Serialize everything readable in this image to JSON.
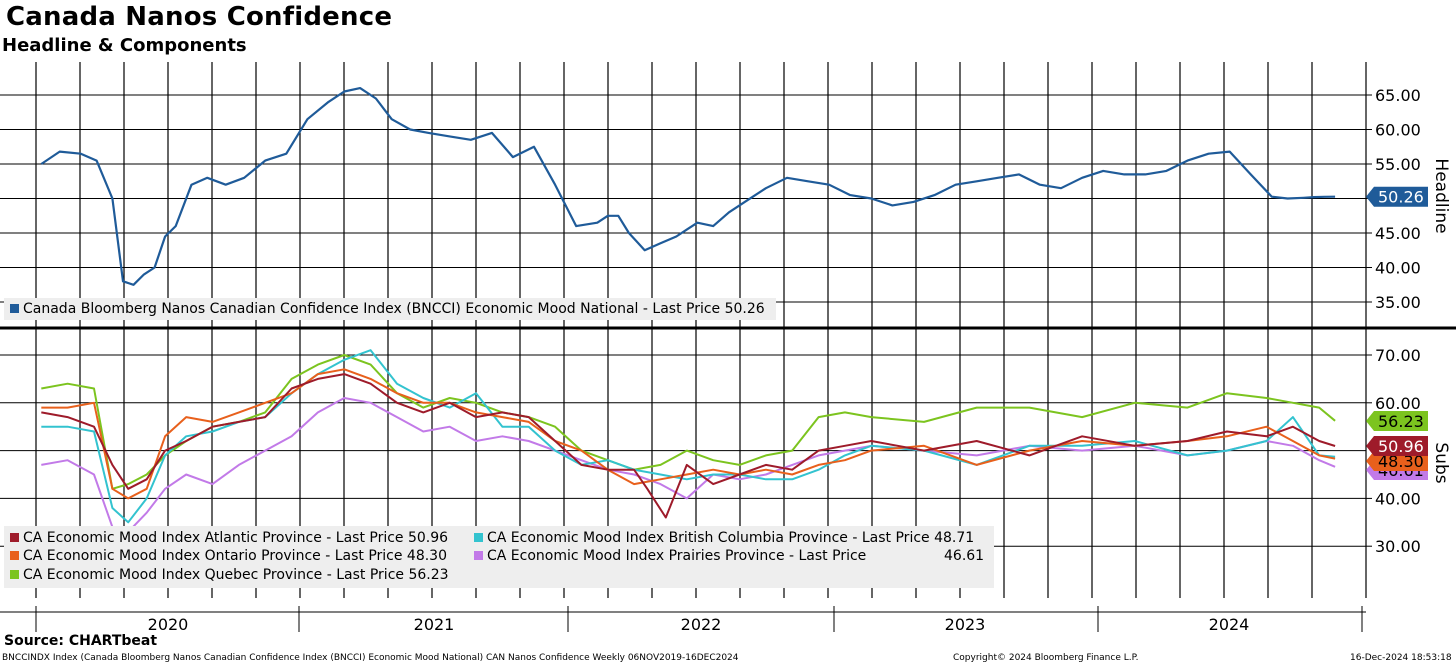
{
  "title": "Canada Nanos Confidence",
  "subtitle": "Headline & Components",
  "source": "Source: CHARTbeat",
  "footer": {
    "description": "BNCCINDX Index (Canada Bloomberg Nanos Canadian Confidence Index (BNCCI) Economic Mood National) CAN Nanos Confidence  Weekly 06NOV2019-16DEC2024",
    "copyright": "Copyright© 2024 Bloomberg Finance L.P.",
    "timestamp": "16-Dec-2024 18:53:18"
  },
  "colors": {
    "national": "#1f5b99",
    "atlantic": "#9e1b2a",
    "ontario": "#e8601c",
    "quebec": "#7cc41f",
    "british_columbia": "#33c3cf",
    "prairies": "#c27ae8"
  },
  "chart_data": [
    {
      "type": "line",
      "panel": "top",
      "axis_title": "Headline",
      "ylim": [
        31,
        70
      ],
      "yticks": [
        "65.00",
        "60.00",
        "55.00",
        "50.00",
        "45.00",
        "40.00",
        "35.00"
      ],
      "xlabels": [
        "2020",
        "2021",
        "2022",
        "2023",
        "2024"
      ],
      "series": [
        {
          "name": "Canada Bloomberg Nanos Canadian Confidence Index (BNCCI) Economic Mood National",
          "legend": "Canada Bloomberg Nanos Canadian Confidence Index (BNCCI) Economic Mood National - Last Price 50.26",
          "last_label": "50.26",
          "x": [
            2019.85,
            2019.92,
            2020.0,
            2020.06,
            2020.12,
            2020.16,
            2020.2,
            2020.24,
            2020.28,
            2020.32,
            2020.36,
            2020.42,
            2020.48,
            2020.55,
            2020.62,
            2020.7,
            2020.78,
            2020.86,
            2020.94,
            2021.0,
            2021.06,
            2021.12,
            2021.18,
            2021.25,
            2021.32,
            2021.4,
            2021.48,
            2021.56,
            2021.64,
            2021.72,
            2021.8,
            2021.88,
            2021.96,
            2022.0,
            2022.04,
            2022.08,
            2022.14,
            2022.2,
            2022.26,
            2022.3,
            2022.34,
            2022.4,
            2022.46,
            2022.52,
            2022.6,
            2022.68,
            2022.76,
            2022.84,
            2022.92,
            2023.0,
            2023.08,
            2023.16,
            2023.24,
            2023.32,
            2023.4,
            2023.48,
            2023.56,
            2023.64,
            2023.72,
            2023.8,
            2023.88,
            2023.96,
            2024.04,
            2024.12,
            2024.2,
            2024.28,
            2024.36,
            2024.44,
            2024.52,
            2024.58,
            2024.64,
            2024.68,
            2024.72,
            2024.76
          ],
          "values": [
            55.0,
            56.8,
            56.5,
            55.5,
            50.0,
            38.0,
            37.5,
            39.0,
            40.0,
            44.5,
            46.0,
            52.0,
            53.0,
            52.0,
            53.0,
            55.5,
            56.5,
            61.5,
            64.0,
            65.5,
            66.0,
            64.5,
            61.5,
            60.0,
            59.5,
            59.0,
            58.5,
            59.5,
            56.0,
            57.5,
            52.0,
            46.0,
            46.5,
            47.5,
            47.5,
            45.0,
            42.5,
            43.5,
            44.5,
            45.5,
            46.5,
            46.0,
            48.0,
            49.5,
            51.5,
            53.0,
            52.5,
            52.0,
            50.5,
            50.0,
            49.0,
            49.5,
            50.5,
            52.0,
            52.5,
            53.0,
            53.5,
            52.0,
            51.5,
            53.0,
            54.0,
            53.5,
            53.5,
            54.0,
            55.5,
            56.5,
            56.8,
            53.5,
            50.26,
            50.0,
            50.1,
            50.2,
            50.25,
            50.26
          ]
        }
      ]
    },
    {
      "type": "line",
      "panel": "bottom",
      "axis_title": "Subs",
      "ylim": [
        25,
        73
      ],
      "yticks": [
        "70.00",
        "60.00",
        "40.00",
        "30.00"
      ],
      "series": [
        {
          "name": "CA Economic Mood Index Atlantic Province",
          "legend": "CA Economic Mood Index Atlantic Province - Last Price 50.96",
          "last_label": "50.96",
          "color_key": "atlantic",
          "x": [
            2019.85,
            2019.95,
            2020.05,
            2020.12,
            2020.18,
            2020.25,
            2020.32,
            2020.4,
            2020.5,
            2020.6,
            2020.7,
            2020.8,
            2020.9,
            2021.0,
            2021.1,
            2021.2,
            2021.3,
            2021.4,
            2021.5,
            2021.6,
            2021.7,
            2021.8,
            2021.9,
            2022.0,
            2022.1,
            2022.15,
            2022.22,
            2022.3,
            2022.4,
            2022.5,
            2022.6,
            2022.7,
            2022.8,
            2022.9,
            2023.0,
            2023.2,
            2023.4,
            2023.6,
            2023.8,
            2024.0,
            2024.2,
            2024.35,
            2024.5,
            2024.6,
            2024.7,
            2024.76
          ],
          "values": [
            58,
            57,
            55,
            47,
            42,
            44,
            50,
            52,
            55,
            56,
            57,
            63,
            65,
            66,
            64,
            60,
            58,
            60,
            57,
            58,
            57,
            52,
            47,
            46,
            46,
            42,
            36,
            47,
            43,
            45,
            47,
            46,
            50,
            51,
            52,
            50,
            52,
            49,
            53,
            51,
            52,
            54,
            53,
            55,
            52,
            50.96
          ]
        },
        {
          "name": "CA Economic Mood Index Ontario Province",
          "legend": "CA Economic Mood Index Ontario Province - Last Price 48.30",
          "last_label": "48.30",
          "color_key": "ontario",
          "x": [
            2019.85,
            2019.95,
            2020.05,
            2020.12,
            2020.18,
            2020.25,
            2020.32,
            2020.4,
            2020.5,
            2020.6,
            2020.7,
            2020.8,
            2020.9,
            2021.0,
            2021.1,
            2021.2,
            2021.3,
            2021.4,
            2021.5,
            2021.6,
            2021.7,
            2021.8,
            2021.9,
            2022.0,
            2022.1,
            2022.2,
            2022.3,
            2022.4,
            2022.5,
            2022.6,
            2022.7,
            2022.8,
            2022.9,
            2023.0,
            2023.2,
            2023.4,
            2023.6,
            2023.8,
            2024.0,
            2024.2,
            2024.35,
            2024.5,
            2024.6,
            2024.7,
            2024.76
          ],
          "values": [
            59,
            59,
            60,
            42,
            40,
            42,
            53,
            57,
            56,
            58,
            60,
            62,
            66,
            67,
            65,
            62,
            60,
            60,
            58,
            57,
            56,
            52,
            50,
            46,
            43,
            44,
            45,
            46,
            45,
            46,
            45,
            47,
            48,
            50,
            51,
            47,
            50,
            52,
            51,
            52,
            53,
            55,
            52,
            49,
            48.3
          ]
        },
        {
          "name": "CA Economic Mood Index Quebec Province",
          "legend": "CA Economic Mood Index Quebec Province - Last Price 56.23",
          "last_label": "56.23",
          "color_key": "quebec",
          "x": [
            2019.85,
            2019.95,
            2020.05,
            2020.12,
            2020.18,
            2020.25,
            2020.32,
            2020.4,
            2020.5,
            2020.6,
            2020.7,
            2020.8,
            2020.9,
            2021.0,
            2021.1,
            2021.2,
            2021.3,
            2021.4,
            2021.5,
            2021.6,
            2021.7,
            2021.8,
            2021.9,
            2022.0,
            2022.1,
            2022.2,
            2022.3,
            2022.4,
            2022.5,
            2022.6,
            2022.7,
            2022.8,
            2022.9,
            2023.0,
            2023.2,
            2023.4,
            2023.6,
            2023.8,
            2024.0,
            2024.2,
            2024.35,
            2024.5,
            2024.6,
            2024.7,
            2024.76
          ],
          "values": [
            63,
            64,
            63,
            42,
            43,
            45,
            49,
            52,
            55,
            56,
            58,
            65,
            68,
            70,
            68,
            62,
            59,
            61,
            60,
            58,
            57,
            55,
            50,
            48,
            46,
            47,
            50,
            48,
            47,
            49,
            50,
            57,
            58,
            57,
            56,
            59,
            59,
            57,
            60,
            59,
            62,
            61,
            60,
            59,
            56.23
          ]
        },
        {
          "name": "CA Economic Mood Index British Columbia Province",
          "legend": "CA Economic Mood Index British Columbia Province - Last Price 48.71",
          "last_label": "48.71",
          "color_key": "british_columbia",
          "x": [
            2019.85,
            2019.95,
            2020.05,
            2020.12,
            2020.18,
            2020.25,
            2020.32,
            2020.4,
            2020.5,
            2020.6,
            2020.7,
            2020.8,
            2020.9,
            2021.0,
            2021.1,
            2021.2,
            2021.3,
            2021.4,
            2021.5,
            2021.6,
            2021.7,
            2021.8,
            2021.9,
            2022.0,
            2022.1,
            2022.2,
            2022.3,
            2022.4,
            2022.5,
            2022.6,
            2022.7,
            2022.8,
            2022.9,
            2023.0,
            2023.2,
            2023.4,
            2023.6,
            2023.8,
            2024.0,
            2024.2,
            2024.35,
            2024.5,
            2024.6,
            2024.7,
            2024.76
          ],
          "values": [
            55,
            55,
            54,
            38,
            35,
            40,
            49,
            53,
            54,
            56,
            57,
            62,
            66,
            69,
            71,
            64,
            61,
            59,
            62,
            55,
            55,
            50,
            47,
            48,
            46,
            45,
            44,
            45,
            45,
            44,
            44,
            46,
            49,
            51,
            50,
            47,
            51,
            51,
            52,
            49,
            50,
            52,
            57,
            49,
            48.71
          ]
        },
        {
          "name": "CA Economic Mood Index Prairies Province",
          "legend": "CA Economic Mood Index Prairies Province - Last Price",
          "last_value_text": "46.61",
          "last_label": "46.61",
          "color_key": "prairies",
          "x": [
            2019.85,
            2019.95,
            2020.05,
            2020.12,
            2020.18,
            2020.25,
            2020.32,
            2020.4,
            2020.5,
            2020.6,
            2020.7,
            2020.8,
            2020.9,
            2021.0,
            2021.1,
            2021.2,
            2021.3,
            2021.4,
            2021.5,
            2021.6,
            2021.7,
            2021.8,
            2021.9,
            2022.0,
            2022.1,
            2022.2,
            2022.3,
            2022.4,
            2022.5,
            2022.6,
            2022.7,
            2022.8,
            2022.9,
            2023.0,
            2023.2,
            2023.4,
            2023.6,
            2023.8,
            2024.0,
            2024.2,
            2024.35,
            2024.5,
            2024.6,
            2024.7,
            2024.76
          ],
          "values": [
            47,
            48,
            45,
            34,
            33,
            37,
            42,
            45,
            43,
            47,
            50,
            53,
            58,
            61,
            60,
            57,
            54,
            55,
            52,
            53,
            52,
            50,
            48,
            46,
            45,
            43,
            40,
            45,
            44,
            45,
            47,
            49,
            50,
            51,
            50,
            49,
            51,
            50,
            51,
            49,
            50,
            52,
            51,
            48,
            46.61
          ]
        }
      ]
    }
  ]
}
